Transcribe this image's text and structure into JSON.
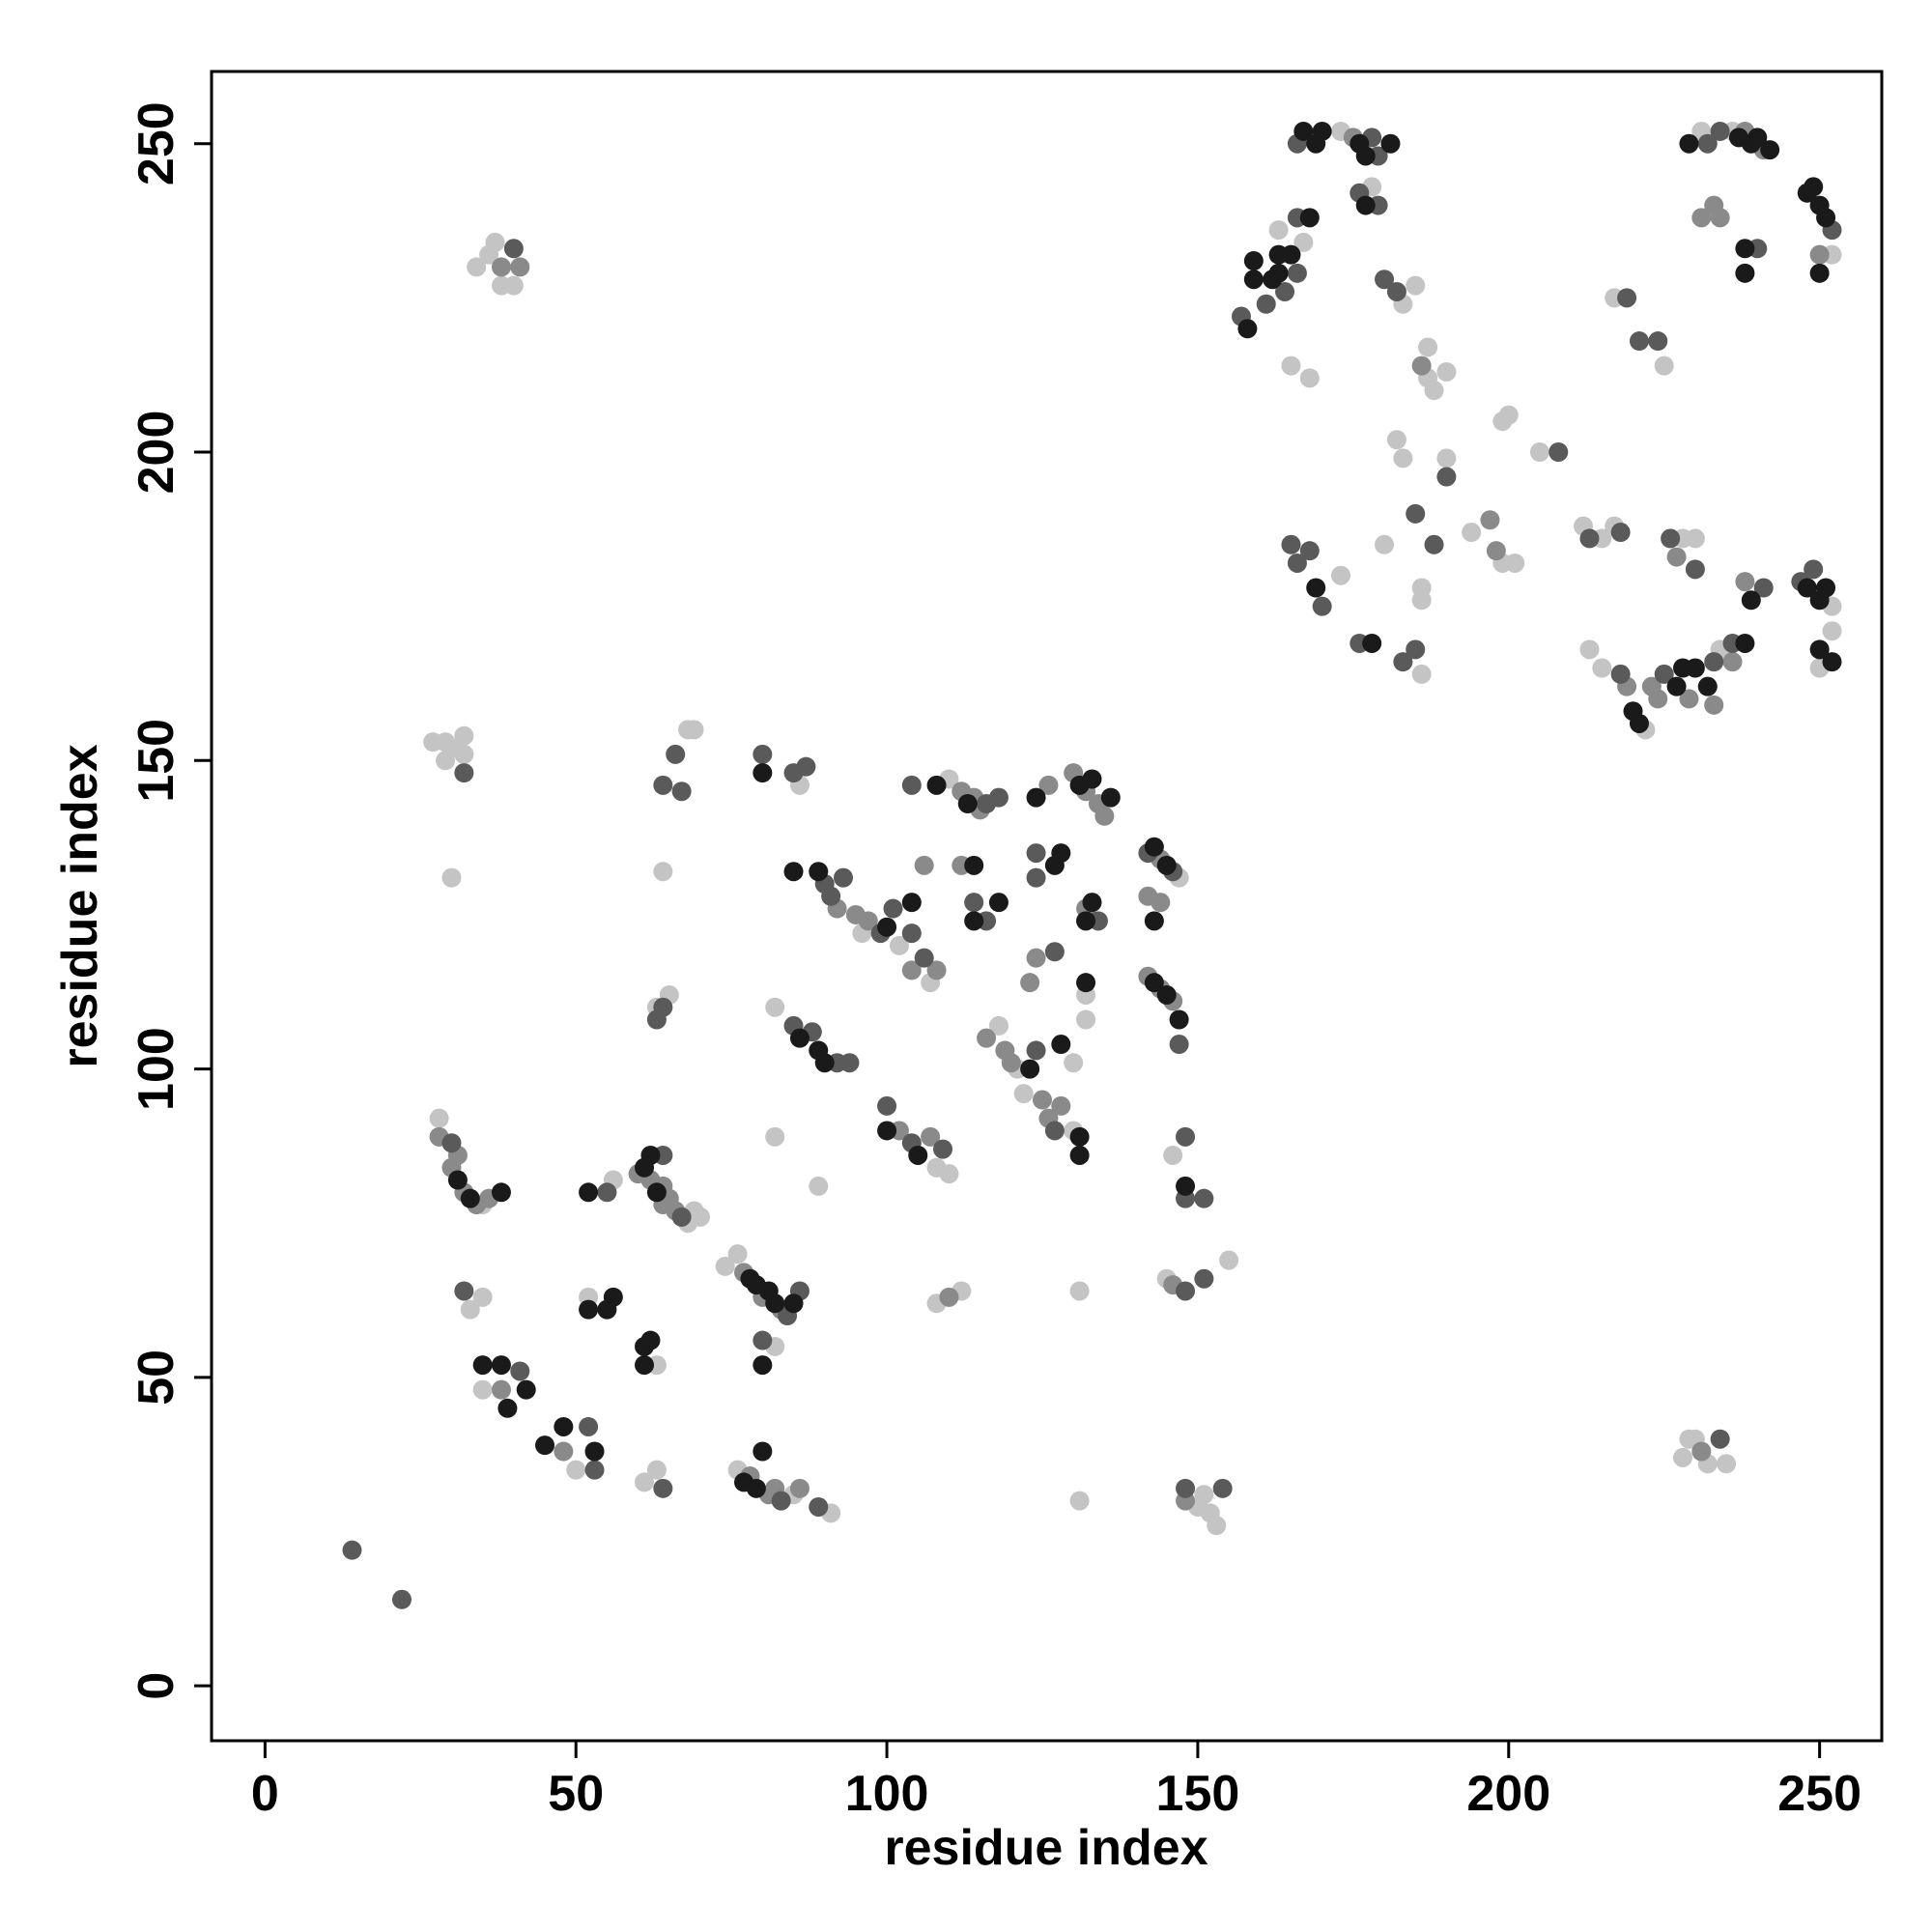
{
  "chart_data": {
    "type": "scatter",
    "xlabel": "residue index",
    "ylabel": "residue index",
    "xlim": [
      -8.6,
      260
    ],
    "ylim": [
      -8.9,
      261.7
    ],
    "xticks": [
      0,
      50,
      100,
      150,
      200,
      250
    ],
    "yticks": [
      0,
      50,
      100,
      150,
      200,
      250
    ],
    "series": [
      {
        "color": "#c4c4c4",
        "x": [
          27,
          29,
          30,
          32,
          29,
          32,
          30,
          34,
          36,
          37,
          38,
          40,
          28,
          35,
          33,
          35,
          35,
          50,
          52,
          56,
          63,
          61,
          63,
          68,
          69,
          70,
          65,
          63,
          64,
          68,
          69,
          74,
          76,
          82,
          76,
          85,
          91,
          86,
          82,
          89,
          82,
          96,
          102,
          107,
          108,
          110,
          108,
          112,
          110,
          118,
          121,
          122,
          130,
          130,
          132,
          132,
          131,
          131,
          147,
          146,
          145,
          155,
          150,
          151,
          152,
          153,
          165,
          163,
          167,
          168,
          173,
          178,
          183,
          185,
          187,
          188,
          190,
          187,
          182,
          183,
          186,
          190,
          194,
          199,
          200,
          199,
          201,
          205,
          173,
          180,
          186,
          186,
          212,
          215,
          217,
          213,
          215,
          217,
          225,
          222,
          234,
          228,
          230,
          231,
          236,
          252,
          250,
          252,
          252,
          230,
          232,
          235,
          228,
          229
        ],
        "values": [
          153,
          153,
          152,
          154,
          150,
          151,
          131,
          230,
          232,
          234,
          227,
          227,
          92,
          78,
          61,
          63,
          48,
          35,
          63,
          82,
          52,
          33,
          35,
          75,
          77,
          76,
          112,
          110,
          132,
          155,
          155,
          68,
          70,
          55,
          35,
          31,
          28,
          146,
          89,
          81,
          110,
          122,
          120,
          114,
          84,
          83,
          62,
          64,
          147,
          107,
          100,
          96,
          90,
          101,
          108,
          112,
          64,
          30,
          131,
          86,
          66,
          69,
          29,
          31,
          28,
          26,
          214,
          236,
          234,
          212,
          252,
          243,
          224,
          227,
          212,
          210,
          213,
          217,
          202,
          199,
          178,
          199,
          187,
          205,
          206,
          182,
          182,
          200,
          180,
          185,
          164,
          176,
          188,
          186,
          188,
          168,
          165,
          225,
          214,
          155,
          168,
          186,
          186,
          252,
          252,
          175,
          165,
          171,
          232,
          40,
          36,
          36,
          37,
          40
        ]
      },
      {
        "color": "#8a8a8a",
        "x": [
          28,
          31,
          30,
          32,
          34,
          36,
          38,
          48,
          60,
          62,
          64,
          64,
          65,
          66,
          77,
          80,
          83,
          78,
          81,
          82,
          86,
          92,
          95,
          97,
          104,
          108,
          106,
          102,
          107,
          110,
          112,
          114,
          115,
          112,
          116,
          119,
          120,
          125,
          126,
          128,
          123,
          124,
          126,
          130,
          132,
          134,
          135,
          132,
          144,
          142,
          144,
          142,
          144,
          146,
          146,
          148,
          175,
          186,
          197,
          198,
          223,
          224,
          229,
          233,
          219,
          227,
          238,
          241,
          231,
          233,
          234,
          238,
          236,
          250,
          231,
          38,
          41
        ],
        "values": [
          89,
          86,
          84,
          80,
          78,
          79,
          48,
          38,
          83,
          82,
          81,
          78,
          79,
          77,
          67,
          63,
          61,
          34,
          31,
          32,
          32,
          126,
          125,
          124,
          116,
          116,
          133,
          90,
          89,
          63,
          145,
          144,
          142,
          133,
          105,
          103,
          101,
          95,
          92,
          94,
          114,
          118,
          146,
          148,
          145,
          143,
          141,
          126,
          134,
          128,
          127,
          115,
          113,
          111,
          65,
          30,
          251,
          214,
          189,
          184,
          162,
          160,
          160,
          159,
          162,
          183,
          252,
          249,
          238,
          240,
          238,
          179,
          166,
          232,
          38,
          230,
          230
        ]
      },
      {
        "color": "#5a5a5a",
        "x": [
          30,
          32,
          41,
          52,
          53,
          55,
          67,
          64,
          64,
          84,
          86,
          83,
          89,
          80,
          80,
          85,
          87,
          85,
          88,
          92,
          94,
          90,
          91,
          93,
          99,
          101,
          104,
          106,
          100,
          104,
          109,
          104,
          116,
          118,
          114,
          116,
          124,
          127,
          124,
          124,
          127,
          134,
          142,
          146,
          147,
          148,
          148,
          151,
          148,
          151,
          148,
          154,
          157,
          161,
          164,
          166,
          166,
          166,
          178,
          179,
          176,
          179,
          180,
          182,
          185,
          188,
          190,
          208,
          165,
          166,
          168,
          170,
          176,
          183,
          185,
          213,
          218,
          219,
          221,
          224,
          218,
          225,
          233,
          226,
          230,
          232,
          234,
          240,
          241,
          236,
          247,
          249,
          252,
          234,
          14,
          22,
          32,
          40,
          63,
          64,
          64,
          66,
          67
        ],
        "values": [
          88,
          64,
          51,
          42,
          35,
          80,
          76,
          86,
          32,
          60,
          64,
          30,
          29,
          56,
          151,
          148,
          149,
          107,
          106,
          101,
          101,
          130,
          128,
          131,
          122,
          126,
          122,
          118,
          94,
          88,
          87,
          146,
          143,
          144,
          127,
          124,
          103,
          90,
          135,
          131,
          119,
          124,
          135,
          132,
          104,
          89,
          79,
          79,
          64,
          66,
          32,
          32,
          222,
          224,
          226,
          229,
          238,
          250,
          251,
          248,
          242,
          240,
          228,
          226,
          190,
          185,
          196,
          200,
          185,
          182,
          184,
          175,
          169,
          166,
          168,
          186,
          187,
          225,
          218,
          218,
          164,
          164,
          166,
          186,
          181,
          250,
          252,
          233,
          178,
          169,
          179,
          181,
          236,
          40,
          22,
          14,
          148,
          233,
          108,
          110,
          146,
          151,
          145
        ]
      },
      {
        "color": "#1a1a1a",
        "x": [
          31,
          33,
          38,
          35,
          38,
          39,
          42,
          45,
          48,
          53,
          52,
          52,
          55,
          56,
          61,
          62,
          61,
          61,
          62,
          63,
          78,
          79,
          81,
          82,
          85,
          77,
          79,
          80,
          80,
          80,
          86,
          89,
          90,
          85,
          89,
          100,
          104,
          100,
          105,
          108,
          113,
          114,
          114,
          118,
          123,
          128,
          131,
          131,
          124,
          127,
          128,
          131,
          133,
          136,
          133,
          132,
          132,
          143,
          145,
          143,
          143,
          145,
          147,
          148,
          158,
          159,
          159,
          162,
          163,
          163,
          165,
          168,
          167,
          169,
          170,
          176,
          177,
          181,
          177,
          169,
          178,
          220,
          221,
          227,
          228,
          230,
          232,
          229,
          237,
          239,
          240,
          242,
          238,
          238,
          239,
          238,
          248,
          250,
          251,
          250,
          252,
          248,
          249,
          250,
          251,
          250
        ],
        "values": [
          82,
          79,
          80,
          52,
          52,
          45,
          48,
          39,
          42,
          38,
          61,
          80,
          61,
          63,
          55,
          56,
          52,
          84,
          86,
          80,
          66,
          65,
          64,
          62,
          62,
          33,
          32,
          38,
          52,
          148,
          105,
          103,
          101,
          132,
          132,
          123,
          127,
          90,
          86,
          146,
          143,
          133,
          124,
          127,
          100,
          104,
          89,
          86,
          144,
          133,
          135,
          146,
          147,
          144,
          127,
          124,
          114,
          136,
          133,
          124,
          114,
          112,
          108,
          81,
          220,
          228,
          231,
          228,
          232,
          229,
          232,
          238,
          252,
          250,
          252,
          250,
          248,
          250,
          240,
          178,
          169,
          158,
          156,
          162,
          165,
          165,
          162,
          250,
          251,
          250,
          251,
          249,
          233,
          229,
          176,
          169,
          178,
          176,
          178,
          168,
          166,
          242,
          243,
          240,
          238,
          229
        ]
      }
    ]
  }
}
